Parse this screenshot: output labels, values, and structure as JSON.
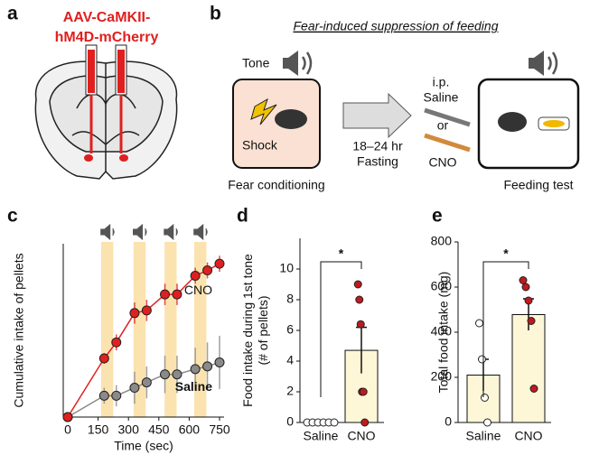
{
  "panel_labels": [
    "a",
    "b",
    "c",
    "d",
    "e"
  ],
  "panel_a": {
    "construct": [
      "AAV-CaMKII-",
      "hM4D-mCherry"
    ]
  },
  "panel_b": {
    "title": "Fear-induced suppression of feeding",
    "tone": "Tone",
    "shock": "Shock",
    "conditioning": "Fear conditioning",
    "fasting": [
      "18–24 hr",
      "Fasting"
    ],
    "ip": "i.p.",
    "saline": "Saline",
    "or": "or",
    "cno": "CNO",
    "test": "Feeding test"
  },
  "chart_data": [
    {
      "type": "line",
      "xlabel": "Time (sec)",
      "ylabel": "Cumulative intake of pellets",
      "x": [
        0,
        180,
        240,
        330,
        390,
        480,
        540,
        630,
        690,
        750
      ],
      "xlim": [
        0,
        750
      ],
      "xticks": [
        0,
        150,
        300,
        450,
        600,
        750
      ],
      "ylim": [
        0,
        65
      ],
      "tones": [
        [
          165,
          225
        ],
        [
          325,
          385
        ],
        [
          478,
          538
        ],
        [
          625,
          685
        ]
      ],
      "tone_color": "#fbe3b0",
      "series": [
        {
          "name": "CNO",
          "color": "#e02020",
          "values": [
            0,
            22,
            28,
            39,
            40,
            46,
            46,
            53,
            55,
            57.5
          ],
          "errors": [
            0,
            2,
            3,
            4,
            4,
            4,
            4,
            3,
            3,
            3
          ]
        },
        {
          "name": "Saline",
          "color": "#8a8a8a",
          "values": [
            0,
            8,
            8,
            11,
            13,
            16,
            16,
            18,
            19,
            20.5
          ],
          "errors": [
            0,
            3,
            4,
            6,
            6,
            7,
            7,
            8,
            9,
            10
          ]
        }
      ]
    },
    {
      "type": "bar",
      "ylabel": [
        "Food intake during 1st tone",
        "(# of pellets)"
      ],
      "categories": [
        "Saline",
        "CNO"
      ],
      "values": [
        0,
        4.7
      ],
      "errors": [
        0,
        1.5
      ],
      "points": [
        [
          0,
          0,
          0,
          0,
          0,
          0
        ],
        [
          9,
          8,
          6.4,
          2,
          2,
          0
        ]
      ],
      "color": "#fdf7d7",
      "point_colors": [
        "#ffffff",
        "#c0191e"
      ],
      "ylim": [
        0,
        12
      ],
      "yticks": [
        0,
        2,
        4,
        6,
        8,
        10
      ],
      "annotation": "*"
    },
    {
      "type": "bar",
      "ylabel": [
        "Total food intake (mg)"
      ],
      "categories": [
        "Saline",
        "CNO"
      ],
      "values": [
        210,
        478
      ],
      "errors": [
        70,
        70
      ],
      "points": [
        [
          440,
          280,
          110,
          0
        ],
        [
          630,
          600,
          540,
          450,
          150
        ]
      ],
      "color": "#fdf7d7",
      "point_colors": [
        "#ffffff",
        "#c0191e"
      ],
      "ylim": [
        0,
        800
      ],
      "yticks": [
        0,
        200,
        400,
        600,
        800
      ],
      "annotation": "*"
    }
  ]
}
